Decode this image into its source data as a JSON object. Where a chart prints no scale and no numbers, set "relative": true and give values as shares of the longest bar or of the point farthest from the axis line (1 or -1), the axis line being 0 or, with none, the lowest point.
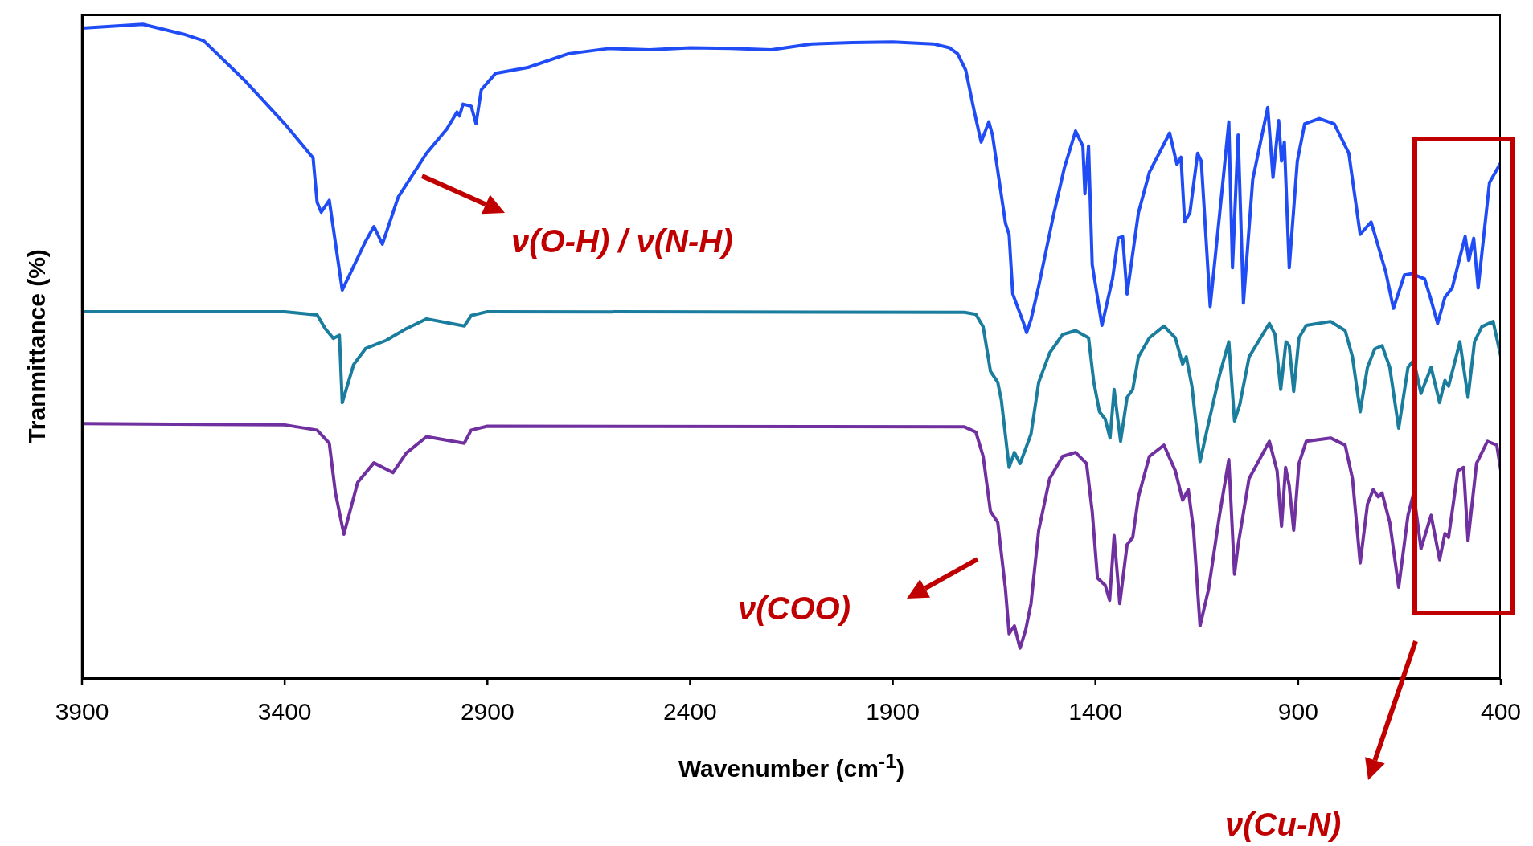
{
  "chart_data": {
    "type": "line",
    "xlabel": "Wavenumber (cm$^{-1}$)",
    "ylabel": "Tranmittance (%)",
    "relative": true,
    "marker": "none",
    "xlim": [
      3900,
      400
    ],
    "xticks": [
      3900,
      3400,
      2900,
      2400,
      1900,
      1400,
      900,
      400
    ],
    "annotations": [
      "ν(O-H) / ν(N-H)",
      "ν(COO)",
      "ν(Cu-N)"
    ],
    "series": [
      {
        "color": "#1f4cf5",
        "x": [
          3900,
          3750,
          3650,
          3600,
          3500,
          3400,
          3330,
          3320,
          3310,
          3290,
          3258,
          3200,
          3180,
          3159,
          3120,
          3050,
          3000,
          2975,
          2969,
          2960,
          2940,
          2928,
          2915,
          2880,
          2800,
          2700,
          2600,
          2500,
          2400,
          2300,
          2200,
          2100,
          2000,
          1900,
          1800,
          1760,
          1740,
          1720,
          1700,
          1682,
          1663,
          1654,
          1622,
          1613,
          1604,
          1577,
          1570,
          1559,
          1540,
          1504,
          1477,
          1449,
          1431,
          1426,
          1417,
          1408,
          1384,
          1358,
          1344,
          1333,
          1322,
          1294,
          1267,
          1217,
          1199,
          1189,
          1180,
          1167,
          1148,
          1139,
          1117,
          1085,
          1071,
          1062,
          1048,
          1035,
          1012,
          975,
          962,
          948,
          941,
          934,
          922,
          902,
          884,
          848,
          811,
          775,
          747,
          720,
          684,
          665,
          638,
          620,
          588,
          574,
          556,
          538,
          520,
          488,
          479,
          467,
          456,
          428,
          400
        ],
        "values": [
          0.994,
          1.0,
          0.985,
          0.975,
          0.915,
          0.848,
          0.796,
          0.728,
          0.713,
          0.731,
          0.594,
          0.669,
          0.691,
          0.664,
          0.736,
          0.803,
          0.84,
          0.866,
          0.86,
          0.878,
          0.875,
          0.848,
          0.9,
          0.925,
          0.934,
          0.955,
          0.963,
          0.961,
          0.964,
          0.963,
          0.961,
          0.97,
          0.972,
          0.973,
          0.97,
          0.964,
          0.955,
          0.93,
          0.87,
          0.82,
          0.851,
          0.831,
          0.696,
          0.679,
          0.588,
          0.543,
          0.529,
          0.549,
          0.6,
          0.707,
          0.78,
          0.837,
          0.814,
          0.741,
          0.814,
          0.633,
          0.54,
          0.611,
          0.673,
          0.676,
          0.588,
          0.712,
          0.774,
          0.834,
          0.786,
          0.797,
          0.698,
          0.712,
          0.803,
          0.791,
          0.569,
          0.763,
          0.851,
          0.628,
          0.831,
          0.574,
          0.763,
          0.873,
          0.766,
          0.853,
          0.791,
          0.82,
          0.628,
          0.791,
          0.848,
          0.856,
          0.848,
          0.803,
          0.679,
          0.698,
          0.622,
          0.566,
          0.617,
          0.619,
          0.611,
          0.583,
          0.543,
          0.583,
          0.597,
          0.676,
          0.639,
          0.673,
          0.597,
          0.758,
          0.789
        ]
      },
      {
        "color": "#1a7d9e",
        "x": [
          3900,
          3400,
          3320,
          3300,
          3280,
          3265,
          3258,
          3230,
          3200,
          3150,
          3100,
          3050,
          2957,
          2940,
          2900,
          1723,
          1695,
          1677,
          1659,
          1641,
          1632,
          1613,
          1600,
          1586,
          1572,
          1559,
          1540,
          1513,
          1481,
          1449,
          1417,
          1404,
          1390,
          1376,
          1364,
          1354,
          1338,
          1322,
          1308,
          1294,
          1267,
          1231,
          1203,
          1185,
          1176,
          1162,
          1142,
          1121,
          1094,
          1071,
          1057,
          1044,
          1021,
          971,
          957,
          943,
          930,
          922,
          911,
          898,
          880,
          820,
          784,
          766,
          747,
          729,
          711,
          693,
          674,
          652,
          629,
          615,
          597,
          572,
          551,
          538,
          529,
          501,
          481,
          465,
          447,
          419,
          400
        ],
        "values": [
          0.561,
          0.561,
          0.556,
          0.535,
          0.52,
          0.525,
          0.422,
          0.48,
          0.505,
          0.517,
          0.535,
          0.55,
          0.539,
          0.555,
          0.561,
          0.56,
          0.557,
          0.538,
          0.47,
          0.453,
          0.425,
          0.323,
          0.346,
          0.329,
          0.352,
          0.374,
          0.453,
          0.498,
          0.526,
          0.532,
          0.521,
          0.453,
          0.408,
          0.397,
          0.368,
          0.442,
          0.363,
          0.43,
          0.442,
          0.492,
          0.521,
          0.539,
          0.521,
          0.481,
          0.492,
          0.447,
          0.332,
          0.391,
          0.464,
          0.515,
          0.394,
          0.419,
          0.492,
          0.543,
          0.526,
          0.442,
          0.515,
          0.509,
          0.439,
          0.521,
          0.54,
          0.546,
          0.532,
          0.492,
          0.408,
          0.476,
          0.504,
          0.509,
          0.476,
          0.383,
          0.476,
          0.487,
          0.436,
          0.476,
          0.422,
          0.456,
          0.447,
          0.515,
          0.43,
          0.515,
          0.538,
          0.546,
          0.492
        ]
      },
      {
        "color": "#7030a0",
        "x": [
          3900,
          3400,
          3320,
          3290,
          3275,
          3254,
          3220,
          3180,
          3133,
          3100,
          3050,
          2957,
          2940,
          2900,
          1723,
          1695,
          1677,
          1659,
          1641,
          1622,
          1613,
          1600,
          1586,
          1572,
          1559,
          1540,
          1513,
          1481,
          1449,
          1422,
          1408,
          1395,
          1376,
          1365,
          1354,
          1340,
          1322,
          1308,
          1294,
          1267,
          1231,
          1203,
          1185,
          1171,
          1158,
          1142,
          1121,
          1094,
          1071,
          1057,
          1048,
          1021,
          971,
          952,
          941,
          931,
          922,
          911,
          898,
          880,
          820,
          784,
          766,
          747,
          729,
          715,
          702,
          693,
          674,
          652,
          629,
          615,
          597,
          572,
          551,
          538,
          529,
          506,
          492,
          481,
          460,
          433,
          410,
          400
        ],
        "values": [
          0.39,
          0.388,
          0.38,
          0.36,
          0.285,
          0.221,
          0.3,
          0.33,
          0.315,
          0.345,
          0.37,
          0.36,
          0.38,
          0.386,
          0.385,
          0.377,
          0.34,
          0.256,
          0.239,
          0.137,
          0.069,
          0.081,
          0.047,
          0.075,
          0.115,
          0.227,
          0.306,
          0.34,
          0.346,
          0.329,
          0.256,
          0.154,
          0.143,
          0.12,
          0.219,
          0.115,
          0.205,
          0.216,
          0.278,
          0.34,
          0.357,
          0.318,
          0.273,
          0.289,
          0.227,
          0.081,
          0.137,
          0.25,
          0.335,
          0.16,
          0.205,
          0.306,
          0.363,
          0.318,
          0.233,
          0.323,
          0.295,
          0.227,
          0.329,
          0.363,
          0.368,
          0.357,
          0.306,
          0.177,
          0.267,
          0.289,
          0.278,
          0.284,
          0.239,
          0.14,
          0.25,
          0.284,
          0.199,
          0.25,
          0.182,
          0.222,
          0.216,
          0.318,
          0.323,
          0.211,
          0.329,
          0.363,
          0.357,
          0.318
        ]
      }
    ]
  }
}
